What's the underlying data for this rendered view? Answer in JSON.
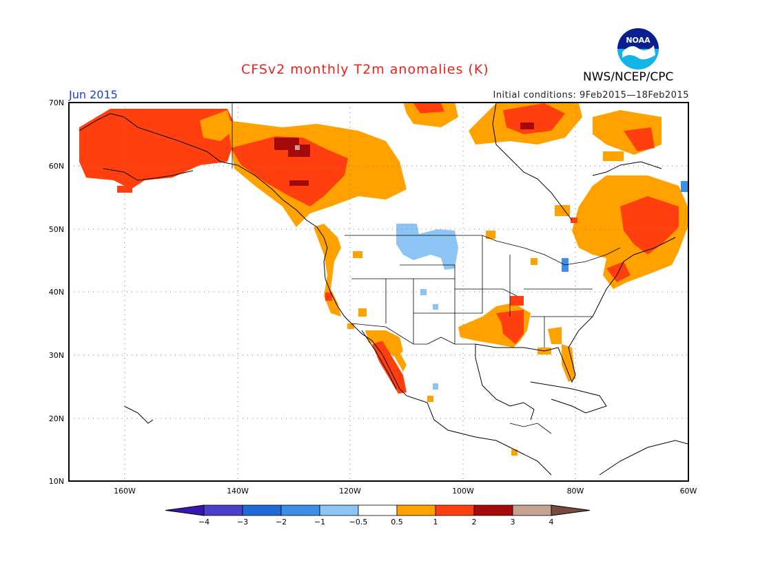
{
  "header": {
    "title": "CFSv2 monthly T2m anomalies (K)",
    "agency": "NWS/NCEP/CPC",
    "logo_text": "NOAA",
    "month": "Jun 2015",
    "initial_conditions": "Initial conditions: 9Feb2015—18Feb2015"
  },
  "axes": {
    "lat_labels": [
      "70N",
      "60N",
      "50N",
      "40N",
      "30N",
      "20N",
      "10N"
    ],
    "lon_labels": [
      "160W",
      "140W",
      "120W",
      "100W",
      "80W",
      "60W"
    ],
    "lat_range": [
      10,
      70
    ],
    "lon_range": [
      -170,
      -60
    ]
  },
  "legend": {
    "labels": [
      "-4",
      "-3",
      "-2",
      "-1",
      "-0.5",
      "0.5",
      "1",
      "2",
      "3",
      "4"
    ],
    "colors": [
      "#3a16b0",
      "#4a40cc",
      "#1f6ad6",
      "#3b8fe8",
      "#8cc4f5",
      "#ffffff",
      "#ffa200",
      "#ff3f0d",
      "#a50a0a",
      "#c7a294",
      "#7a4a40"
    ]
  },
  "anomaly_regions": [
    {
      "region": "Alaska",
      "level": "1-2",
      "color": "#ff3f0d"
    },
    {
      "region": "Yukon / NW Canada",
      "level": "2-3",
      "color": "#a50a0a"
    },
    {
      "region": "Western Canada",
      "level": "0.5-1",
      "color": "#ffa200"
    },
    {
      "region": "Quebec / Labrador",
      "level": "1-2",
      "color": "#ff3f0d"
    },
    {
      "region": "Arctic Archipelago",
      "level": "1-2",
      "color": "#ff3f0d"
    },
    {
      "region": "US West Coast",
      "level": "0.5-1",
      "color": "#ffa200"
    },
    {
      "region": "Northern Plains",
      "level": "-1 to -0.5",
      "color": "#8cc4f5"
    },
    {
      "region": "Lower Mississippi Valley",
      "level": "1-2",
      "color": "#ff3f0d"
    },
    {
      "region": "Baja California",
      "level": "1-2",
      "color": "#ff3f0d"
    },
    {
      "region": "Florida",
      "level": "0.5-1",
      "color": "#ffa200"
    },
    {
      "region": "New England",
      "level": "1-2",
      "color": "#ff3f0d"
    }
  ]
}
